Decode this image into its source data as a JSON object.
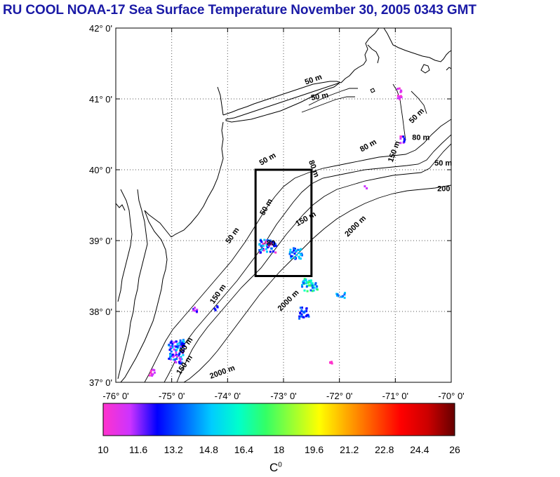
{
  "title": "RU COOL  NOAA-17 Sea Surface Temperature November 30, 2005 0343 GMT",
  "map": {
    "lon_range": [
      -76,
      -70
    ],
    "lat_range": [
      37,
      42
    ],
    "lon_ticks": [
      "-76° 0'",
      "-75° 0'",
      "-74° 0'",
      "-73° 0'",
      "-72° 0'",
      "-71° 0'",
      "-70° 0'"
    ],
    "lat_ticks": [
      "42° 0'",
      "41° 0'",
      "40° 0'",
      "39° 0'",
      "38° 0'",
      "37° 0'"
    ],
    "grid": "dotted",
    "study_box": {
      "lon": [
        -73.5,
        -72.5
      ],
      "lat": [
        38.5,
        40.0
      ]
    },
    "isobath_labels": [
      {
        "text": "50 m",
        "lon": -72.6,
        "lat": 41.2,
        "angle": -20
      },
      {
        "text": "50 m",
        "lon": -72.5,
        "lat": 40.98,
        "angle": -10
      },
      {
        "text": "50 m",
        "lon": -70.7,
        "lat": 40.65,
        "angle": -45
      },
      {
        "text": "80 m",
        "lon": -70.7,
        "lat": 40.42,
        "angle": 0
      },
      {
        "text": "150 m",
        "lon": -71.05,
        "lat": 40.1,
        "angle": -70
      },
      {
        "text": "50 m",
        "lon": -70.3,
        "lat": 40.06,
        "angle": 0
      },
      {
        "text": "200",
        "lon": -70.25,
        "lat": 39.7,
        "angle": 0
      },
      {
        "text": "80 m",
        "lon": -71.6,
        "lat": 40.25,
        "angle": -30
      },
      {
        "text": "50 m",
        "lon": -73.4,
        "lat": 40.06,
        "angle": -30
      },
      {
        "text": "80 m",
        "lon": -72.55,
        "lat": 40.12,
        "angle": 70
      },
      {
        "text": "50 m",
        "lon": -73.35,
        "lat": 39.35,
        "angle": -60
      },
      {
        "text": "150 m",
        "lon": -72.75,
        "lat": 39.2,
        "angle": -30
      },
      {
        "text": "2000 m",
        "lon": -71.85,
        "lat": 39.05,
        "angle": -45
      },
      {
        "text": "50 m",
        "lon": -73.97,
        "lat": 38.95,
        "angle": -55
      },
      {
        "text": "80",
        "lon": -73.3,
        "lat": 38.93,
        "angle": 0
      },
      {
        "text": "150 m",
        "lon": -74.25,
        "lat": 38.1,
        "angle": -55
      },
      {
        "text": "2000 m",
        "lon": -73.05,
        "lat": 38.0,
        "angle": -45
      },
      {
        "text": "80 m",
        "lon": -74.8,
        "lat": 37.4,
        "angle": -55
      },
      {
        "text": "150 m",
        "lon": -74.85,
        "lat": 37.1,
        "angle": -55
      },
      {
        "text": "2000 m",
        "lon": -74.3,
        "lat": 37.05,
        "angle": -20
      }
    ]
  },
  "colorbar": {
    "range": [
      10,
      26
    ],
    "labels": [
      "10",
      "11.6",
      "13.2",
      "14.8",
      "16.4",
      "18",
      "19.6",
      "21.2",
      "22.8",
      "24.4",
      "26"
    ],
    "unit": "C",
    "unit_superscript": "0",
    "colors": [
      "#ff33cc",
      "#cc33ff",
      "#0000ff",
      "#0066ff",
      "#00ccff",
      "#00ffcc",
      "#33ff66",
      "#99ff33",
      "#ffff00",
      "#ffaa00",
      "#ff5500",
      "#ff0000",
      "#cc0000",
      "#660000"
    ]
  }
}
